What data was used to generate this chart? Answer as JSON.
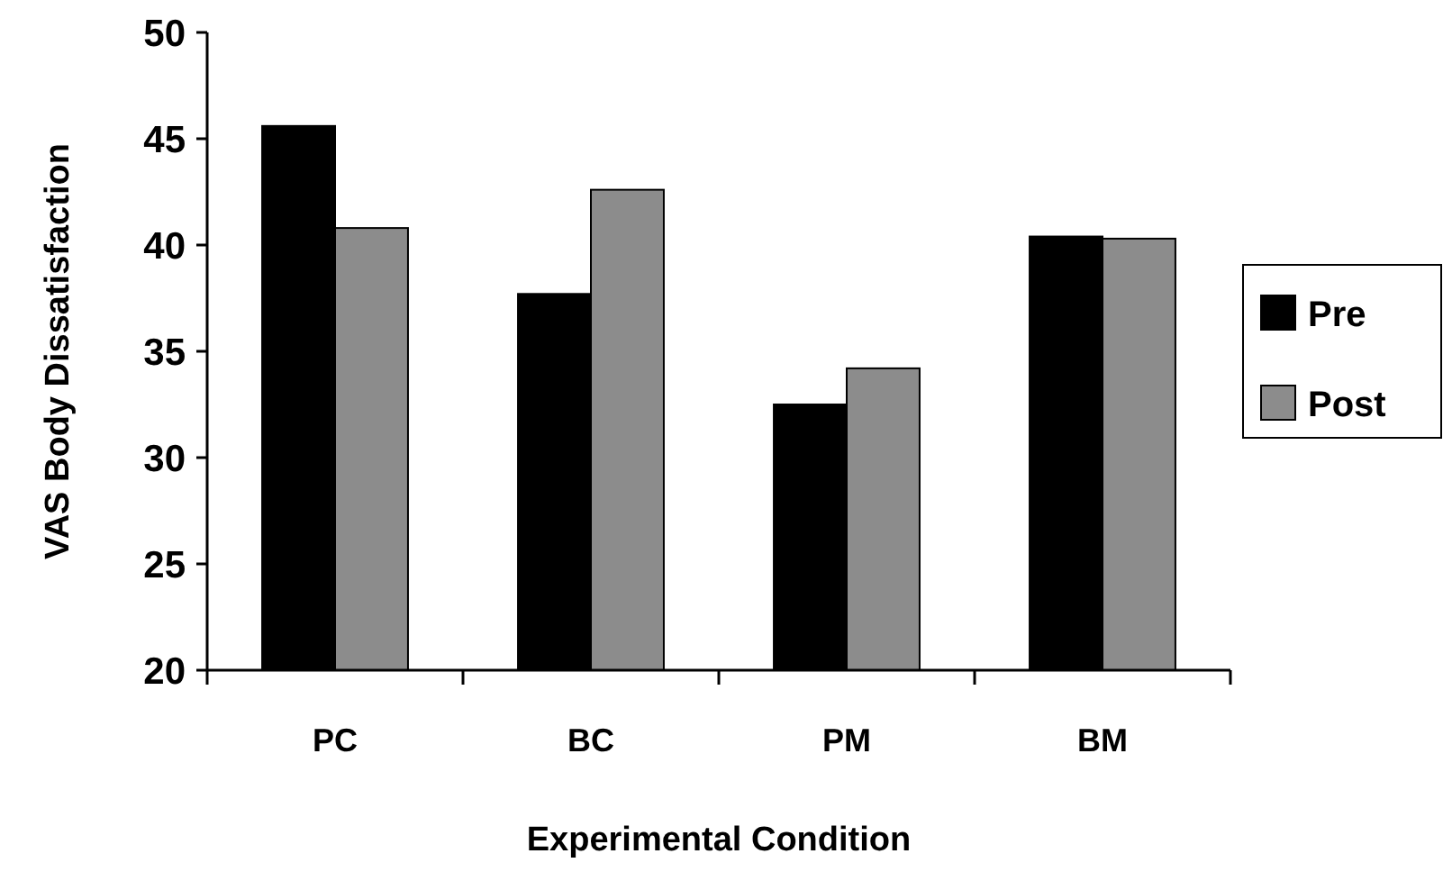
{
  "chart_data": {
    "type": "bar",
    "xlabel": "Experimental Condition",
    "ylabel": "VAS Body Dissatisfaction",
    "categories": [
      "PC",
      "BC",
      "PM",
      "BM"
    ],
    "series": [
      {
        "name": "Pre",
        "color": "#000000",
        "values": [
          45.6,
          37.7,
          32.5,
          40.4
        ]
      },
      {
        "name": "Post",
        "color": "#8c8c8c",
        "values": [
          40.8,
          42.6,
          34.2,
          40.3
        ]
      }
    ],
    "ylim": [
      20,
      50
    ],
    "yticks": [
      20,
      25,
      30,
      35,
      40,
      45,
      50
    ],
    "grid": false,
    "legend": "right"
  }
}
